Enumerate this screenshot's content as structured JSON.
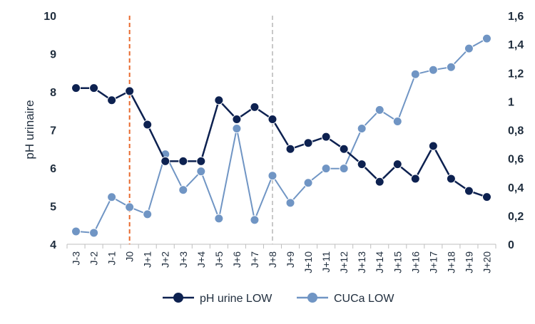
{
  "chart_data": {
    "type": "line",
    "categories": [
      "J-3",
      "J-2",
      "J-1",
      "J0",
      "J+1",
      "J+2",
      "J+3",
      "J+4",
      "J+5",
      "J+6",
      "J+7",
      "J+8",
      "J+9",
      "J+10",
      "J+11",
      "J+12",
      "J+13",
      "J+14",
      "J+15",
      "J+16",
      "J+17",
      "J+18",
      "J+19",
      "J+20"
    ],
    "series": [
      {
        "name": "pH urine LOW",
        "axis": "left",
        "color": "#0d2150",
        "values": [
          8.1,
          8.1,
          7.78,
          8.02,
          7.14,
          6.18,
          6.18,
          6.18,
          7.78,
          7.28,
          7.6,
          7.28,
          6.5,
          6.66,
          6.82,
          6.5,
          6.1,
          5.64,
          6.1,
          5.72,
          6.58,
          5.72,
          5.4,
          5.24
        ]
      },
      {
        "name": "CUCa LOW",
        "axis": "right",
        "color": "#7095c4",
        "values": [
          0.09,
          0.08,
          0.33,
          0.26,
          0.21,
          0.63,
          0.38,
          0.51,
          0.18,
          0.81,
          0.17,
          0.48,
          0.29,
          0.43,
          0.53,
          0.53,
          0.81,
          0.94,
          0.86,
          1.19,
          1.22,
          1.24,
          1.37,
          1.44
        ]
      }
    ],
    "ylabel": "pH urinaire",
    "ylim": [
      4,
      10
    ],
    "y_ticks": [
      "4",
      "5",
      "6",
      "7",
      "8",
      "9",
      "10"
    ],
    "y2lim": [
      0,
      1.6
    ],
    "y2_ticks": [
      "0",
      "0,2",
      "0,4",
      "0,6",
      "0,8",
      "1",
      "1,2",
      "1,4",
      "1,6"
    ],
    "reference_lines": [
      {
        "category": "J0",
        "color": "#e8692d",
        "style": "dashed"
      },
      {
        "category": "J+8",
        "color": "#c8c8c8",
        "style": "dashed"
      }
    ],
    "legend": [
      "pH urine LOW",
      "CUCa LOW"
    ],
    "legend_position": "bottom",
    "grid": false
  }
}
